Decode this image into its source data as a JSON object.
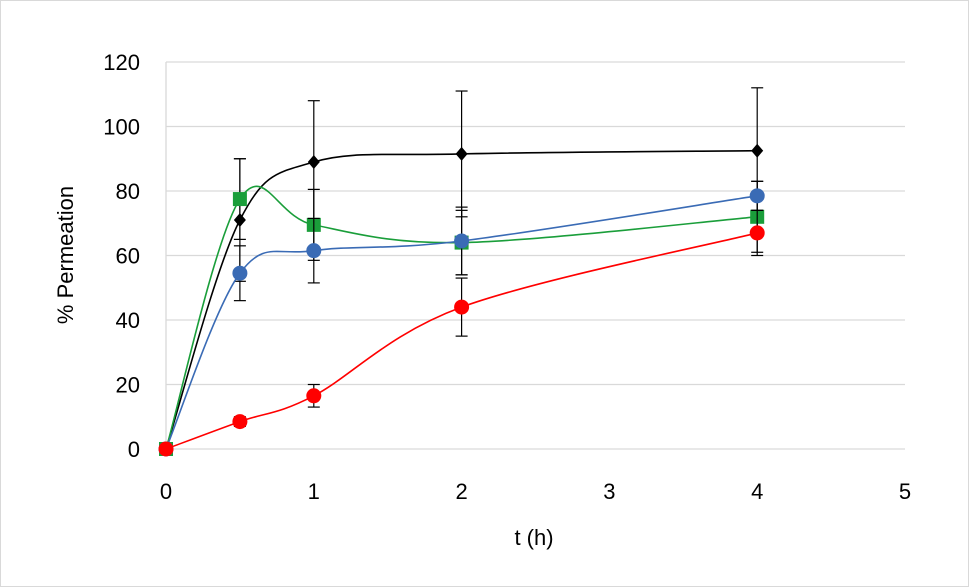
{
  "chart_data": {
    "type": "scatter",
    "title": "",
    "xlabel": "t (h)",
    "ylabel": "% Permeation",
    "xlim": [
      0,
      5
    ],
    "ylim": [
      0,
      120
    ],
    "xticks": [
      0,
      1,
      2,
      3,
      4,
      5
    ],
    "yticks": [
      0,
      20,
      40,
      60,
      80,
      100,
      120
    ],
    "xtick_labels": [
      "0",
      "1",
      "2",
      "3",
      "4",
      "5"
    ],
    "ytick_labels": [
      "0",
      "20",
      "40",
      "60",
      "80",
      "100",
      "120"
    ],
    "grid": "horizontal",
    "legend": "none",
    "series": [
      {
        "marker": "diamond",
        "color": "#000000",
        "x": [
          0,
          0.5,
          1,
          2,
          4
        ],
        "y": [
          0,
          71,
          89,
          91.5,
          92.5
        ],
        "err": [
          0,
          19,
          19,
          19.5,
          19.5
        ]
      },
      {
        "marker": "square",
        "color": "#1a9e3a",
        "x": [
          0,
          0.5,
          1,
          2,
          4
        ],
        "y": [
          0,
          77.5,
          69.5,
          64,
          72
        ],
        "err": [
          0,
          12.5,
          11,
          10,
          11
        ]
      },
      {
        "marker": "circle",
        "color": "#3a6bb5",
        "x": [
          0,
          0.5,
          1,
          2,
          4
        ],
        "y": [
          0,
          54.5,
          61.5,
          64.5,
          78.5
        ],
        "err": [
          0,
          8.5,
          10,
          10.5,
          4.5
        ]
      },
      {
        "marker": "circle",
        "color": "#ff0000",
        "x": [
          0,
          0.5,
          1,
          2,
          4
        ],
        "y": [
          0,
          8.5,
          16.5,
          44,
          67
        ],
        "err": [
          0,
          1.5,
          3.5,
          9,
          7
        ]
      }
    ]
  }
}
